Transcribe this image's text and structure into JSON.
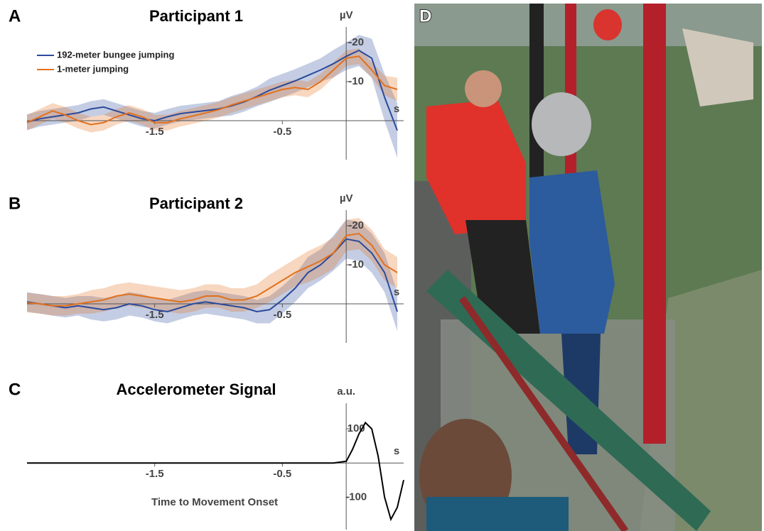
{
  "chart_data": [
    {
      "type": "line",
      "panel": "A",
      "title": "Participant 1",
      "ylabel": "µV",
      "xlabel": "s",
      "legend": "upper left",
      "x": [
        -2.5,
        -2.4,
        -2.3,
        -2.2,
        -2.1,
        -2.0,
        -1.9,
        -1.8,
        -1.7,
        -1.6,
        -1.5,
        -1.4,
        -1.3,
        -1.2,
        -1.1,
        -1.0,
        -0.9,
        -0.8,
        -0.7,
        -0.6,
        -0.5,
        -0.4,
        -0.3,
        -0.2,
        -0.1,
        0,
        0.1,
        0.2,
        0.3,
        0.4
      ],
      "series": [
        {
          "name": "192-meter bungee jumping",
          "color": "#2b4a9c",
          "values": [
            0.4,
            -0.5,
            -1,
            -1.5,
            -2,
            -3,
            -3.5,
            -2.5,
            -1.5,
            -0.5,
            0,
            -1,
            -1.8,
            -2.2,
            -2.6,
            -3,
            -3.8,
            -4.8,
            -6.2,
            -7.8,
            -9,
            -10.2,
            -11.6,
            -13,
            -14.6,
            -16.5,
            -18,
            -16,
            -6,
            2.5
          ],
          "error": [
            2,
            2,
            2,
            2,
            2,
            2,
            2,
            2,
            2,
            2,
            2,
            2,
            2,
            2,
            2,
            2,
            2.5,
            2.5,
            2.5,
            3,
            3,
            3,
            3,
            3,
            3.5,
            3.5,
            4,
            5,
            6,
            7
          ]
        },
        {
          "name": "1-meter jumping",
          "color": "#e2711d",
          "values": [
            0.5,
            -1,
            -2.5,
            -1.5,
            0,
            1,
            0.5,
            -1,
            -2,
            -1,
            0.5,
            0.5,
            -0.5,
            -1.2,
            -2,
            -2.8,
            -4,
            -5,
            -6,
            -7,
            -8,
            -8.5,
            -8,
            -10,
            -13,
            -16,
            -16.5,
            -13,
            -9,
            -8
          ],
          "error": [
            2,
            2,
            2,
            2,
            2,
            2,
            2,
            2,
            2,
            2,
            2,
            2,
            2,
            2,
            2,
            2,
            2,
            2,
            2,
            2,
            2,
            2,
            2,
            2,
            2,
            2,
            2,
            2,
            2.5,
            3
          ]
        }
      ],
      "xlim": [
        -2.5,
        0.45
      ],
      "xticks": [
        -1.5,
        -0.5
      ],
      "ylim": [
        10,
        -24
      ],
      "yticks": [
        -20,
        -10
      ]
    },
    {
      "type": "line",
      "panel": "B",
      "title": "Participant 2",
      "ylabel": "µV",
      "xlabel": "s",
      "x": [
        -2.5,
        -2.4,
        -2.3,
        -2.2,
        -2.1,
        -2.0,
        -1.9,
        -1.8,
        -1.7,
        -1.6,
        -1.5,
        -1.4,
        -1.3,
        -1.2,
        -1.1,
        -1.0,
        -0.9,
        -0.8,
        -0.7,
        -0.6,
        -0.5,
        -0.4,
        -0.3,
        -0.2,
        -0.1,
        0,
        0.1,
        0.2,
        0.3,
        0.4
      ],
      "series": [
        {
          "color": "#2b4a9c",
          "values": [
            -0.5,
            0,
            0.5,
            1,
            0.5,
            1,
            1.5,
            1,
            0,
            0.5,
            1.5,
            2,
            1,
            0,
            -0.5,
            0,
            0.5,
            1,
            2,
            1.5,
            -1,
            -4,
            -8,
            -10,
            -13,
            -16.6,
            -16,
            -13,
            -8,
            2
          ],
          "error": [
            2.5,
            2.5,
            2.5,
            2.5,
            2.5,
            3,
            3,
            3,
            3,
            3,
            3,
            3,
            3,
            3,
            3,
            3,
            3,
            3,
            3,
            3.5,
            3.5,
            3.5,
            4,
            4,
            4.5,
            5,
            5,
            5,
            5,
            5
          ]
        },
        {
          "color": "#e2711d",
          "values": [
            -0.3,
            0,
            0.5,
            0.5,
            0,
            -0.5,
            -1,
            -2,
            -2.5,
            -2,
            -1.5,
            -1,
            -0.5,
            -1,
            -2,
            -2,
            -1,
            -1,
            -2,
            -4,
            -6,
            -8,
            -9.5,
            -11,
            -13,
            -17.5,
            -18,
            -15,
            -10,
            -8
          ],
          "error": [
            2.5,
            2.5,
            2.5,
            2.5,
            2.5,
            3,
            3,
            3,
            3,
            3,
            3,
            3,
            3,
            3,
            3,
            3,
            3,
            3,
            3,
            3.5,
            3.5,
            3.5,
            4,
            4,
            4,
            4,
            4,
            4,
            4,
            4
          ]
        }
      ],
      "xlim": [
        -2.5,
        0.45
      ],
      "xticks": [
        -1.5,
        -0.5
      ],
      "ylim": [
        10,
        -24
      ],
      "yticks": [
        -20,
        -10
      ]
    },
    {
      "type": "line",
      "panel": "C",
      "title": "Accelerometer Signal",
      "ylabel": "a.u.",
      "xlabel": "s",
      "xaxis_title": "Time to Movement Onset",
      "x": [
        -2.5,
        -2.0,
        -1.5,
        -1.0,
        -0.5,
        -0.2,
        -0.1,
        0,
        0.05,
        0.1,
        0.15,
        0.2,
        0.25,
        0.3,
        0.35,
        0.4,
        0.45
      ],
      "series": [
        {
          "color": "#000000",
          "values": [
            0,
            0,
            0,
            0,
            0,
            0,
            0,
            5,
            40,
            85,
            118,
            100,
            20,
            -100,
            -165,
            -130,
            -50
          ]
        }
      ],
      "xlim": [
        -2.5,
        0.45
      ],
      "xticks": [
        -1.5,
        -0.5
      ],
      "ylim": [
        -195,
        175
      ],
      "yticks": [
        100,
        -100
      ]
    }
  ],
  "photo": {
    "panel": "D"
  }
}
